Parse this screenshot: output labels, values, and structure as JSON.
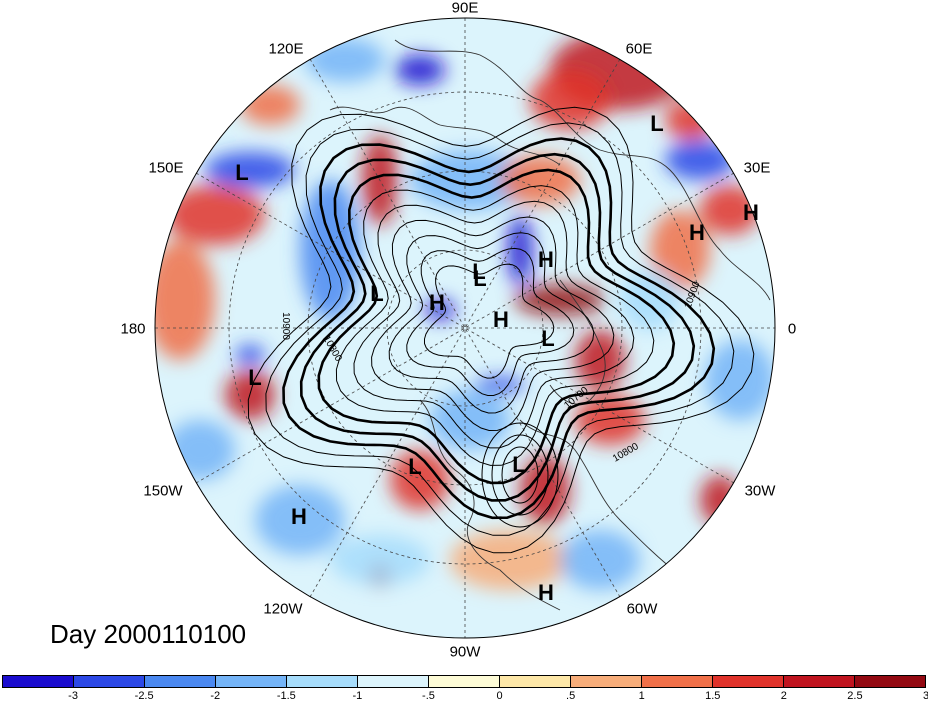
{
  "map": {
    "longitude_labels": [
      {
        "id": "90e",
        "text": "90E"
      },
      {
        "id": "60e",
        "text": "60E"
      },
      {
        "id": "120e",
        "text": "120E"
      },
      {
        "id": "30e",
        "text": "30E"
      },
      {
        "id": "150e",
        "text": "150E"
      },
      {
        "id": "0",
        "text": "0"
      },
      {
        "id": "180",
        "text": "180"
      },
      {
        "id": "30w",
        "text": "30W"
      },
      {
        "id": "150w",
        "text": "150W"
      },
      {
        "id": "60w",
        "text": "60W"
      },
      {
        "id": "120w",
        "text": "120W"
      },
      {
        "id": "90w",
        "text": "90W"
      }
    ],
    "pressure_markers": [
      "L",
      "L",
      "L",
      "H",
      "H",
      "L",
      "H",
      "L",
      "H",
      "H",
      "L",
      "L",
      "L",
      "L",
      "H",
      "H"
    ],
    "contour_labels": [
      "10900",
      "10800",
      "10900",
      "10700",
      "10800"
    ],
    "contour_color": "#000000"
  },
  "title": {
    "day_label": "Day 2000110100"
  },
  "colorbar": {
    "colors": [
      "#1a0ccf",
      "#2c48e6",
      "#4a88f0",
      "#74b4f7",
      "#a6dcfb",
      "#dcf4fc",
      "#fdfbd6",
      "#fde7a8",
      "#f7ad7a",
      "#f07049",
      "#e0332b",
      "#c0141f",
      "#930912"
    ],
    "tick_labels": [
      "-3",
      "-2.5",
      "-2",
      "-1.5",
      "-1",
      "-.5",
      "0",
      ".5",
      "1",
      "1.5",
      "2",
      "2.5",
      "3"
    ]
  }
}
